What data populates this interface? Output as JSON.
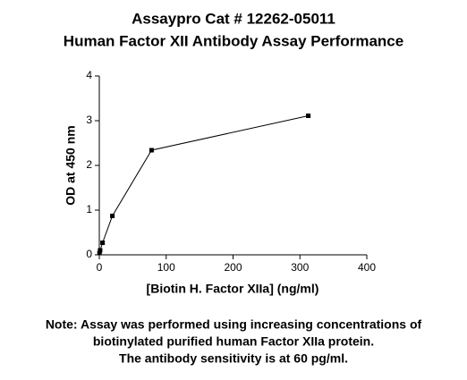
{
  "chart_data": {
    "type": "line",
    "title": "Assaypro Cat # 12262-05011",
    "subtitle": "Human Factor XII Antibody Assay Performance",
    "x_label": "[Biotin H. Factor XIIa] (ng/ml)",
    "y_label": "OD at 450 nm",
    "x": [
      0.305,
      1.22,
      4.88,
      19.53,
      78.13,
      312.5
    ],
    "series": [
      {
        "name": "OD",
        "color": "#000000",
        "values": [
          0.04,
          0.1,
          0.27,
          0.87,
          2.34,
          3.11
        ]
      }
    ],
    "xlim": [
      0,
      400
    ],
    "xticks": [
      0,
      100,
      200,
      300,
      400
    ],
    "ylim": [
      0,
      4
    ],
    "yticks": [
      0,
      1,
      2,
      3,
      4
    ],
    "grid": false,
    "note": [
      "Note: Assay was performed using increasing concentrations of",
      "biotinylated purified human Factor XIIa protein.",
      "The antibody sensitivity is at 60 pg/ml."
    ]
  }
}
